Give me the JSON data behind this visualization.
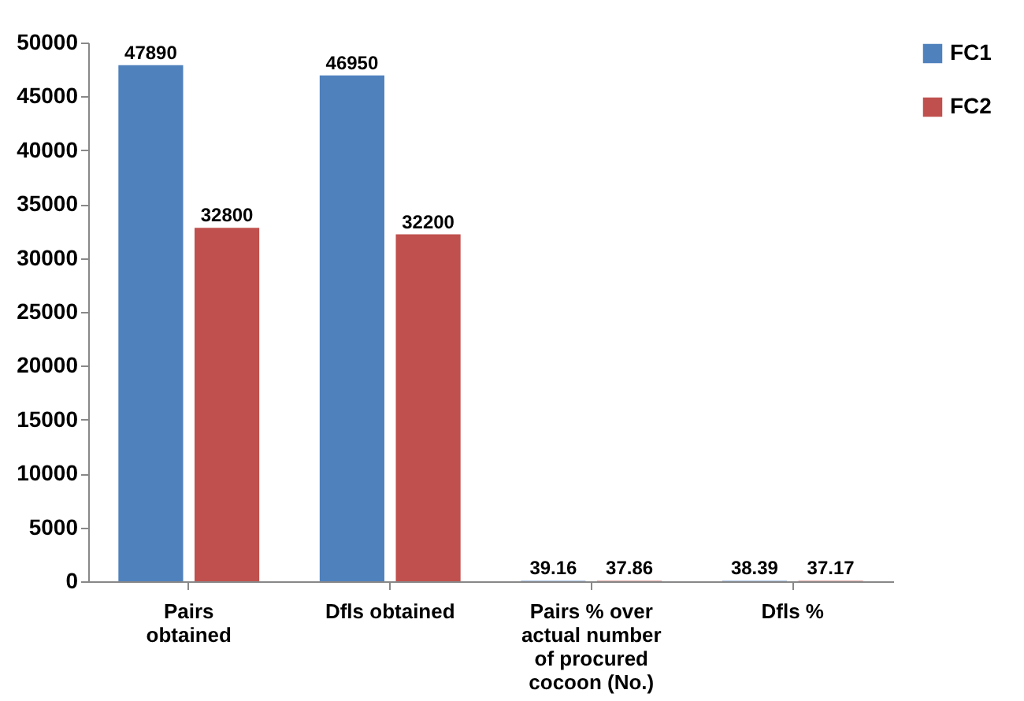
{
  "chart_data": {
    "type": "bar",
    "categories": [
      "Pairs obtained",
      "Dfls obtained",
      "Pairs % over actual number of procured cocoon (No.)",
      "Dfls %"
    ],
    "series": [
      {
        "name": "FC1",
        "color": "#4f81bd",
        "values": [
          47890,
          46950,
          39.16,
          38.39
        ]
      },
      {
        "name": "FC2",
        "color": "#c0504d",
        "values": [
          32800,
          32200,
          37.86,
          37.17
        ]
      }
    ],
    "ylim": [
      0,
      50000
    ],
    "yticks": [
      0,
      5000,
      10000,
      15000,
      20000,
      25000,
      30000,
      35000,
      40000,
      45000,
      50000
    ],
    "data_labels": true,
    "legend": "right"
  }
}
